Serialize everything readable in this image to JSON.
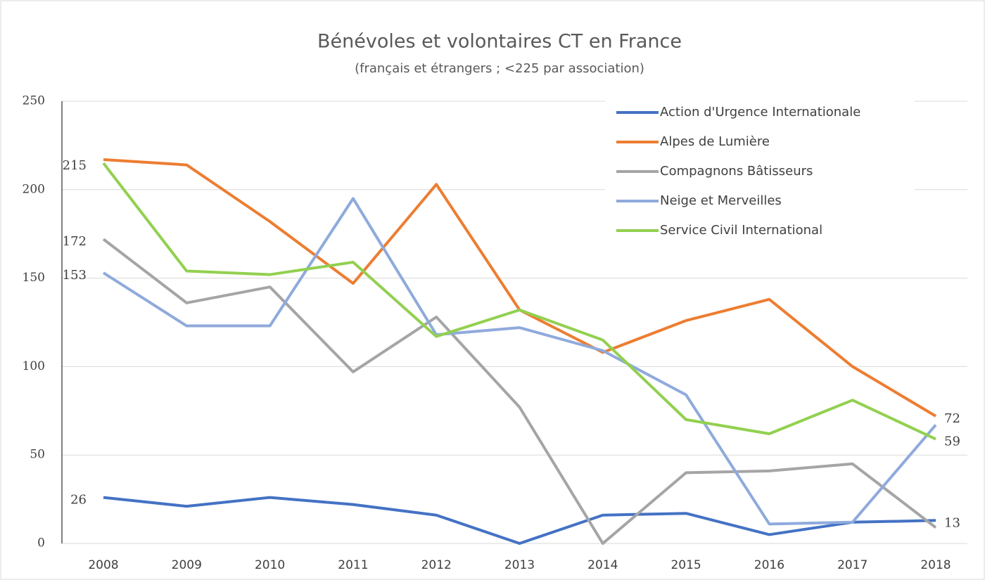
{
  "chart_data": {
    "type": "line",
    "title": "Bénévoles et volontaires CT en France",
    "subtitle": "(français et étrangers ; <225 par association)",
    "categories": [
      "2008",
      "2009",
      "2010",
      "2011",
      "2012",
      "2013",
      "2014",
      "2015",
      "2016",
      "2017",
      "2018"
    ],
    "series": [
      {
        "name": "Action d'Urgence Internationale",
        "color": "#4472c4",
        "values": [
          26,
          21,
          26,
          22,
          16,
          0,
          16,
          17,
          5,
          12,
          13
        ],
        "value_labels": [
          "26",
          null,
          null,
          null,
          null,
          null,
          null,
          null,
          null,
          null,
          "13"
        ]
      },
      {
        "name": "Alpes de Lumière",
        "color": "#ed7d31",
        "values": [
          217,
          214,
          182,
          147,
          203,
          132,
          108,
          126,
          138,
          100,
          72
        ],
        "value_labels": [
          null,
          null,
          null,
          null,
          null,
          null,
          null,
          null,
          null,
          null,
          "72"
        ]
      },
      {
        "name": "Compagnons Bâtisseurs",
        "color": "#a5a5a5",
        "values": [
          172,
          136,
          145,
          97,
          128,
          77,
          0,
          40,
          41,
          45,
          9
        ],
        "value_labels": [
          "172",
          null,
          null,
          null,
          null,
          null,
          null,
          null,
          null,
          null,
          null
        ]
      },
      {
        "name": "Neige et Merveilles",
        "color": "#8faadc",
        "values": [
          153,
          123,
          123,
          195,
          118,
          122,
          109,
          84,
          11,
          12,
          67
        ],
        "value_labels": [
          "153",
          null,
          null,
          null,
          null,
          null,
          null,
          null,
          null,
          null,
          null
        ]
      },
      {
        "name": "Service Civil International",
        "color": "#92d050",
        "values": [
          215,
          154,
          152,
          159,
          117,
          132,
          115,
          70,
          62,
          81,
          59
        ],
        "value_labels": [
          "215",
          null,
          null,
          null,
          null,
          null,
          null,
          null,
          null,
          null,
          "59"
        ]
      }
    ],
    "ylim": [
      0,
      250
    ],
    "yticks": [
      0,
      50,
      100,
      150,
      200,
      250
    ],
    "grid": true,
    "legend": "top-right"
  }
}
